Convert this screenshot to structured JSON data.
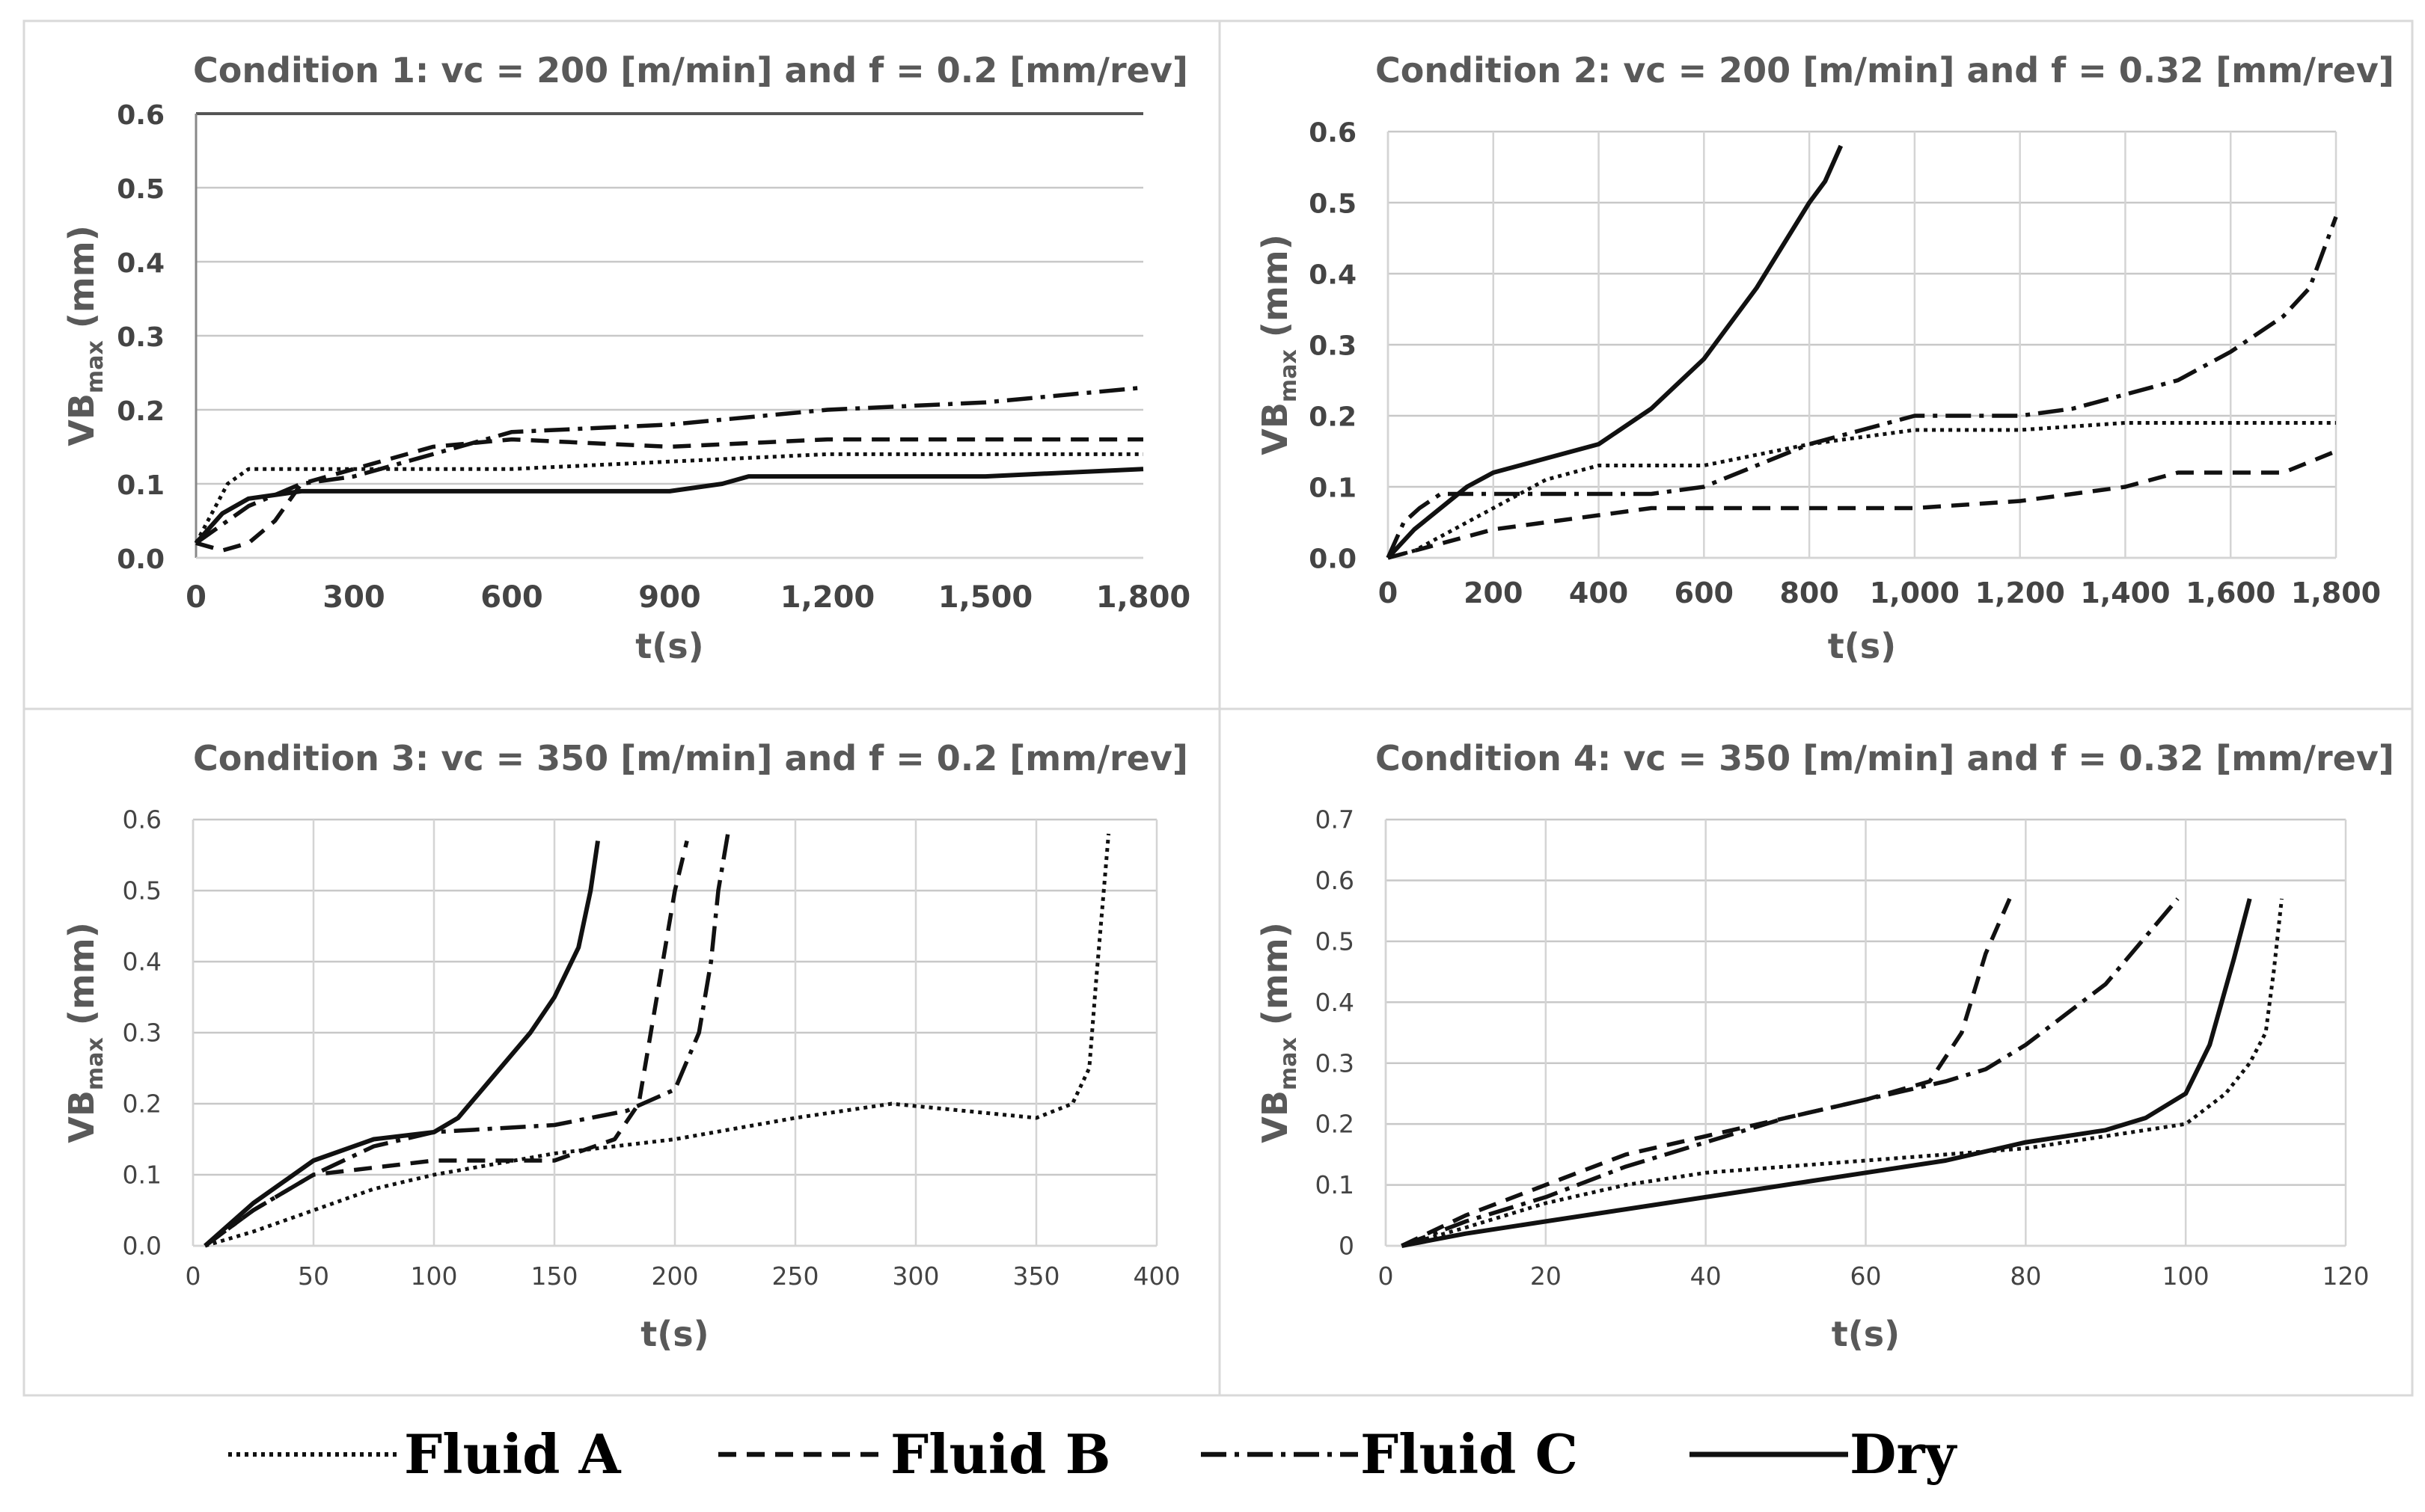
{
  "figure": {
    "legend": [
      {
        "name": "Fluid A",
        "style": "A"
      },
      {
        "name": "Fluid B",
        "style": "B"
      },
      {
        "name": "Fluid C",
        "style": "C"
      },
      {
        "name": "Dry",
        "style": "D"
      }
    ]
  },
  "chart_data": [
    {
      "type": "line",
      "title": "Condition 1: vc = 200 [m/min] and f = 0.2 [mm/rev]",
      "xlabel": "t(s)",
      "ylabel_main": "VB",
      "ylabel_sub": "max",
      "ylabel_unit": " (mm)",
      "xlim": [
        0,
        1800
      ],
      "ylim": [
        0,
        0.6
      ],
      "xticks": [
        0,
        300,
        600,
        900,
        1200,
        1500,
        1800
      ],
      "xtick_labels": [
        "0",
        "300",
        "600",
        "900",
        "1,200",
        "1,500",
        "1,800"
      ],
      "yticks": [
        0,
        0.1,
        0.2,
        0.3,
        0.4,
        0.5,
        0.6
      ],
      "ytick_labels": [
        "0.0",
        "0.1",
        "0.2",
        "0.3",
        "0.4",
        "0.5",
        "0.6"
      ],
      "grid": "horizontal",
      "series": [
        {
          "name": "Fluid A",
          "style": "A",
          "x": [
            0,
            30,
            60,
            100,
            150,
            300,
            600,
            900,
            1200,
            1500,
            1800
          ],
          "y": [
            0.02,
            0.06,
            0.1,
            0.12,
            0.12,
            0.12,
            0.12,
            0.13,
            0.14,
            0.14,
            0.14
          ]
        },
        {
          "name": "Fluid B",
          "style": "B",
          "x": [
            0,
            50,
            100,
            150,
            200,
            300,
            450,
            600,
            900,
            1200,
            1500,
            1800
          ],
          "y": [
            0.02,
            0.01,
            0.02,
            0.05,
            0.1,
            0.12,
            0.15,
            0.16,
            0.15,
            0.16,
            0.16,
            0.16
          ]
        },
        {
          "name": "Fluid C",
          "style": "C",
          "x": [
            0,
            100,
            200,
            300,
            400,
            600,
            900,
            1200,
            1500,
            1800
          ],
          "y": [
            0.02,
            0.07,
            0.1,
            0.11,
            0.13,
            0.17,
            0.18,
            0.2,
            0.21,
            0.23
          ]
        },
        {
          "name": "Dry",
          "style": "D",
          "x": [
            0,
            50,
            100,
            200,
            300,
            600,
            900,
            1000,
            1050,
            1200,
            1500,
            1800
          ],
          "y": [
            0.02,
            0.06,
            0.08,
            0.09,
            0.09,
            0.09,
            0.09,
            0.1,
            0.11,
            0.11,
            0.11,
            0.12
          ]
        }
      ]
    },
    {
      "type": "line",
      "title": "Condition 2: vc = 200 [m/min] and f = 0.32 [mm/rev]",
      "xlabel": "t(s)",
      "ylabel_main": "VB",
      "ylabel_sub": "max",
      "ylabel_unit": " (mm)",
      "xlim": [
        0,
        1800
      ],
      "ylim": [
        0,
        0.6
      ],
      "xticks": [
        0,
        200,
        400,
        600,
        800,
        1000,
        1200,
        1400,
        1600,
        1800
      ],
      "xtick_labels": [
        "0",
        "200",
        "400",
        "600",
        "800",
        "1,000",
        "1,200",
        "1,400",
        "1,600",
        "1,800"
      ],
      "yticks": [
        0,
        0.1,
        0.2,
        0.3,
        0.4,
        0.5,
        0.6
      ],
      "ytick_labels": [
        "0.0",
        "0.1",
        "0.2",
        "0.3",
        "0.4",
        "0.5",
        "0.6"
      ],
      "grid": "both",
      "series": [
        {
          "name": "Fluid A",
          "style": "A",
          "x": [
            0,
            50,
            100,
            200,
            300,
            400,
            500,
            600,
            800,
            1000,
            1200,
            1400,
            1600,
            1800
          ],
          "y": [
            0,
            0.01,
            0.03,
            0.07,
            0.11,
            0.13,
            0.13,
            0.13,
            0.16,
            0.18,
            0.18,
            0.19,
            0.19,
            0.19
          ]
        },
        {
          "name": "Fluid B",
          "style": "B",
          "x": [
            0,
            100,
            200,
            300,
            400,
            500,
            600,
            800,
            1000,
            1200,
            1400,
            1500,
            1600,
            1700,
            1800
          ],
          "y": [
            0,
            0.02,
            0.04,
            0.05,
            0.06,
            0.07,
            0.07,
            0.07,
            0.07,
            0.08,
            0.1,
            0.12,
            0.12,
            0.12,
            0.15
          ]
        },
        {
          "name": "Fluid C",
          "style": "C",
          "x": [
            0,
            30,
            60,
            100,
            200,
            300,
            400,
            500,
            600,
            700,
            800,
            900,
            1000,
            1100,
            1200,
            1300,
            1400,
            1500,
            1600,
            1700,
            1750,
            1800
          ],
          "y": [
            0,
            0.05,
            0.07,
            0.09,
            0.09,
            0.09,
            0.09,
            0.09,
            0.1,
            0.13,
            0.16,
            0.18,
            0.2,
            0.2,
            0.2,
            0.21,
            0.23,
            0.25,
            0.29,
            0.34,
            0.38,
            0.48
          ]
        },
        {
          "name": "Dry",
          "style": "D",
          "x": [
            0,
            50,
            100,
            150,
            200,
            250,
            300,
            400,
            500,
            600,
            650,
            700,
            750,
            800,
            830,
            860
          ],
          "y": [
            0,
            0.04,
            0.07,
            0.1,
            0.12,
            0.13,
            0.14,
            0.16,
            0.21,
            0.28,
            0.33,
            0.38,
            0.44,
            0.5,
            0.53,
            0.58
          ]
        }
      ]
    },
    {
      "type": "line",
      "title": "Condition 3: vc = 350 [m/min] and f = 0.2 [mm/rev]",
      "xlabel": "t(s)",
      "ylabel_main": "VB",
      "ylabel_sub": "max",
      "ylabel_unit": " (mm)",
      "xlim": [
        0,
        400
      ],
      "ylim": [
        0,
        0.6
      ],
      "xticks": [
        0,
        50,
        100,
        150,
        200,
        250,
        300,
        350,
        400
      ],
      "xtick_labels": [
        "0",
        "50",
        "100",
        "150",
        "200",
        "250",
        "300",
        "350",
        "400"
      ],
      "yticks": [
        0,
        0.1,
        0.2,
        0.3,
        0.4,
        0.5,
        0.6
      ],
      "ytick_labels": [
        "0.0",
        "0.1",
        "0.2",
        "0.3",
        "0.4",
        "0.5",
        "0.6"
      ],
      "grid": "both",
      "series": [
        {
          "name": "Fluid A",
          "style": "A",
          "x": [
            5,
            25,
            50,
            75,
            100,
            150,
            200,
            250,
            290,
            320,
            350,
            365,
            372,
            375,
            378,
            380
          ],
          "y": [
            0,
            0.02,
            0.05,
            0.08,
            0.1,
            0.13,
            0.15,
            0.18,
            0.2,
            0.19,
            0.18,
            0.2,
            0.25,
            0.38,
            0.5,
            0.58
          ]
        },
        {
          "name": "Fluid B",
          "style": "B",
          "x": [
            5,
            25,
            50,
            75,
            100,
            150,
            175,
            185,
            190,
            195,
            200,
            205
          ],
          "y": [
            0,
            0.05,
            0.1,
            0.11,
            0.12,
            0.12,
            0.15,
            0.2,
            0.3,
            0.4,
            0.5,
            0.57
          ]
        },
        {
          "name": "Fluid C",
          "style": "C",
          "x": [
            5,
            25,
            50,
            75,
            100,
            150,
            180,
            200,
            210,
            215,
            218,
            222
          ],
          "y": [
            0,
            0.05,
            0.1,
            0.14,
            0.16,
            0.17,
            0.19,
            0.22,
            0.3,
            0.4,
            0.5,
            0.58
          ]
        },
        {
          "name": "Dry",
          "style": "D",
          "x": [
            5,
            25,
            50,
            75,
            100,
            110,
            125,
            140,
            150,
            160,
            165,
            168
          ],
          "y": [
            0,
            0.06,
            0.12,
            0.15,
            0.16,
            0.18,
            0.24,
            0.3,
            0.35,
            0.42,
            0.5,
            0.57
          ]
        }
      ]
    },
    {
      "type": "line",
      "title": "Condition 4: vc = 350 [m/min] and f = 0.32 [mm/rev]",
      "xlabel": "t(s)",
      "ylabel_main": "VB",
      "ylabel_sub": "max",
      "ylabel_unit": " (mm)",
      "xlim": [
        0,
        120
      ],
      "ylim": [
        0,
        0.7
      ],
      "xticks": [
        0,
        20,
        40,
        60,
        80,
        100,
        120
      ],
      "xtick_labels": [
        "0",
        "20",
        "40",
        "60",
        "80",
        "100",
        "120"
      ],
      "yticks": [
        0,
        0.1,
        0.2,
        0.3,
        0.4,
        0.5,
        0.6,
        0.7
      ],
      "ytick_labels": [
        "0",
        "0.1",
        "0.2",
        "0.3",
        "0.4",
        "0.5",
        "0.6",
        "0.7"
      ],
      "grid": "both",
      "series": [
        {
          "name": "Fluid A",
          "style": "A",
          "x": [
            2,
            10,
            20,
            30,
            40,
            50,
            60,
            70,
            80,
            90,
            100,
            105,
            108,
            110,
            111,
            112
          ],
          "y": [
            0,
            0.03,
            0.07,
            0.1,
            0.12,
            0.13,
            0.14,
            0.15,
            0.16,
            0.18,
            0.2,
            0.25,
            0.3,
            0.35,
            0.45,
            0.57
          ]
        },
        {
          "name": "Fluid B",
          "style": "B",
          "x": [
            2,
            10,
            20,
            30,
            40,
            50,
            60,
            68,
            72,
            75,
            78
          ],
          "y": [
            0,
            0.05,
            0.1,
            0.15,
            0.18,
            0.21,
            0.24,
            0.27,
            0.35,
            0.48,
            0.57
          ]
        },
        {
          "name": "Fluid C",
          "style": "C",
          "x": [
            2,
            10,
            20,
            30,
            40,
            50,
            60,
            70,
            75,
            80,
            90,
            99
          ],
          "y": [
            0,
            0.04,
            0.08,
            0.13,
            0.17,
            0.21,
            0.24,
            0.27,
            0.29,
            0.33,
            0.43,
            0.57
          ]
        },
        {
          "name": "Dry",
          "style": "D",
          "x": [
            2,
            10,
            20,
            30,
            40,
            50,
            60,
            70,
            80,
            90,
            95,
            100,
            103,
            106,
            108
          ],
          "y": [
            0,
            0.02,
            0.04,
            0.06,
            0.08,
            0.1,
            0.12,
            0.14,
            0.17,
            0.19,
            0.21,
            0.25,
            0.33,
            0.47,
            0.57
          ]
        }
      ]
    }
  ]
}
